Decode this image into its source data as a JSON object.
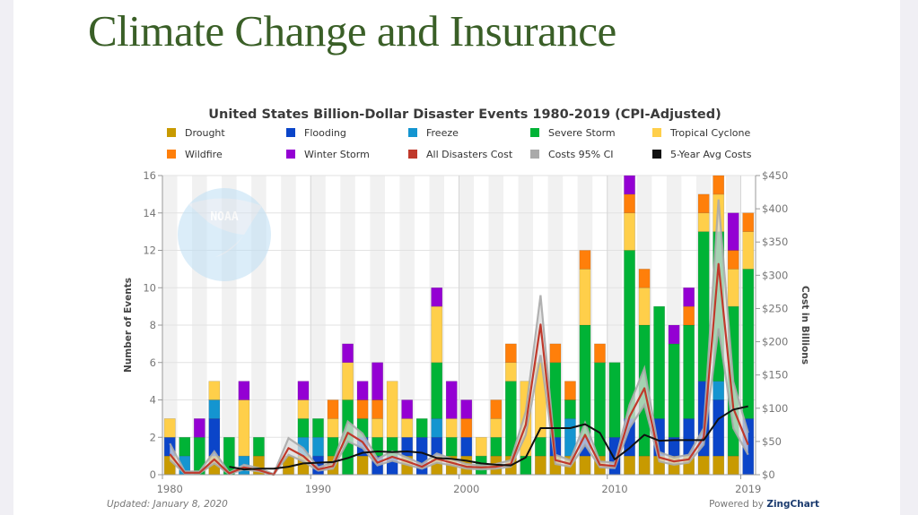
{
  "slide": {
    "title": "Climate Change and Insurance"
  },
  "footer": {
    "updated": "Updated: January 8, 2020",
    "powered_by": "Powered by ",
    "powered_brand": "ZingChart"
  },
  "watermark": {
    "text": "NOAA"
  },
  "chart_data": {
    "type": "bar",
    "stacked": true,
    "title": "United States Billion-Dollar Disaster Events 1980-2019 (CPI-Adjusted)",
    "xlabel": "",
    "ylabel": "Number of Events",
    "y2label": "Cost in Billions",
    "ylim": [
      0,
      16
    ],
    "y2lim": [
      0,
      450
    ],
    "yticks": [
      "0",
      "2",
      "4",
      "6",
      "8",
      "10",
      "12",
      "14",
      "16"
    ],
    "y2ticks": [
      "$0",
      "$50",
      "$100",
      "$150",
      "$200",
      "$250",
      "$300",
      "$350",
      "$400",
      "$450"
    ],
    "xtick_labels": [
      {
        "year": 1980,
        "label": "1980"
      },
      {
        "year": 1990,
        "label": "1990"
      },
      {
        "year": 2000,
        "label": "2000"
      },
      {
        "year": 2010,
        "label": "2010"
      },
      {
        "year": 2019,
        "label": "2019"
      }
    ],
    "grid": true,
    "legend_position": "top",
    "categories": [
      1980,
      1981,
      1982,
      1983,
      1984,
      1985,
      1986,
      1987,
      1988,
      1989,
      1990,
      1991,
      1992,
      1993,
      1994,
      1995,
      1996,
      1997,
      1998,
      1999,
      2000,
      2001,
      2002,
      2003,
      2004,
      2005,
      2006,
      2007,
      2008,
      2009,
      2010,
      2011,
      2012,
      2013,
      2014,
      2015,
      2016,
      2017,
      2018,
      2019
    ],
    "series": [
      {
        "name": "Drought",
        "type": "bar",
        "color": "#c89a00",
        "values": [
          1,
          0,
          0,
          1,
          0,
          0,
          1,
          0,
          1,
          1,
          0,
          1,
          0,
          1,
          0,
          0,
          1,
          0,
          1,
          1,
          1,
          0,
          1,
          1,
          0,
          1,
          1,
          1,
          1,
          1,
          0,
          1,
          1,
          1,
          1,
          1,
          1,
          1,
          1,
          0
        ]
      },
      {
        "name": "Flooding",
        "type": "bar",
        "color": "#0b45c9",
        "values": [
          1,
          0,
          0,
          2,
          0,
          0,
          0,
          0,
          0,
          0,
          1,
          0,
          0,
          1,
          1,
          1,
          1,
          2,
          1,
          0,
          1,
          0,
          0,
          0,
          0,
          0,
          1,
          0,
          1,
          0,
          2,
          2,
          0,
          2,
          1,
          2,
          4,
          3,
          0,
          3
        ]
      },
      {
        "name": "Freeze",
        "type": "bar",
        "color": "#1495d0",
        "values": [
          0,
          1,
          0,
          1,
          0,
          1,
          0,
          0,
          0,
          1,
          1,
          0,
          0,
          0,
          0,
          0,
          0,
          0,
          1,
          0,
          0,
          0,
          0,
          0,
          0,
          0,
          0,
          2,
          0,
          0,
          0,
          0,
          0,
          0,
          0,
          0,
          0,
          1,
          0,
          0
        ]
      },
      {
        "name": "Severe Storm",
        "type": "bar",
        "color": "#00b336",
        "values": [
          0,
          1,
          2,
          0,
          2,
          0,
          1,
          0,
          0,
          1,
          1,
          1,
          4,
          1,
          1,
          1,
          0,
          1,
          3,
          1,
          0,
          1,
          1,
          4,
          1,
          1,
          4,
          1,
          6,
          5,
          4,
          9,
          7,
          6,
          5,
          5,
          8,
          8,
          8,
          8
        ]
      },
      {
        "name": "Tropical Cyclone",
        "type": "bar",
        "color": "#ffcf4a",
        "values": [
          1,
          0,
          0,
          1,
          0,
          3,
          0,
          0,
          0,
          1,
          0,
          1,
          2,
          0,
          1,
          3,
          1,
          0,
          3,
          1,
          0,
          1,
          1,
          1,
          4,
          4,
          0,
          0,
          3,
          0,
          0,
          2,
          2,
          0,
          0,
          0,
          1,
          2,
          2,
          2
        ]
      },
      {
        "name": "Wildfire",
        "type": "bar",
        "color": "#ff7f0a",
        "values": [
          0,
          0,
          0,
          0,
          0,
          0,
          0,
          0,
          0,
          0,
          0,
          1,
          0,
          1,
          1,
          0,
          0,
          0,
          0,
          0,
          1,
          0,
          1,
          1,
          0,
          0,
          1,
          1,
          1,
          1,
          0,
          1,
          1,
          0,
          0,
          1,
          1,
          1,
          1,
          1
        ]
      },
      {
        "name": "Winter Storm",
        "type": "bar",
        "color": "#9400d3",
        "values": [
          0,
          0,
          1,
          0,
          0,
          1,
          0,
          0,
          0,
          1,
          0,
          0,
          1,
          1,
          2,
          0,
          1,
          0,
          1,
          2,
          1,
          0,
          0,
          0,
          0,
          0,
          0,
          0,
          0,
          0,
          0,
          1,
          0,
          0,
          1,
          1,
          0,
          0,
          2,
          0
        ]
      },
      {
        "name": "All Disasters Cost",
        "type": "line",
        "axis": "y2",
        "color": "#c0392b",
        "values": [
          31,
          3,
          3,
          23,
          2,
          11,
          7,
          0,
          40,
          28,
          8,
          13,
          63,
          49,
          18,
          27,
          20,
          12,
          24,
          18,
          12,
          11,
          12,
          16,
          75,
          226,
          22,
          16,
          60,
          15,
          13,
          87,
          130,
          26,
          20,
          23,
          56,
          317,
          100,
          45
        ]
      },
      {
        "name": "Costs 95% CI",
        "type": "band",
        "axis": "y2",
        "color": "#aaaaaa",
        "lower": [
          22,
          2,
          2,
          17,
          1,
          8,
          5,
          0,
          30,
          20,
          6,
          9,
          50,
          40,
          14,
          21,
          15,
          9,
          18,
          14,
          9,
          8,
          9,
          12,
          60,
          180,
          16,
          12,
          45,
          11,
          10,
          70,
          105,
          20,
          15,
          18,
          45,
          220,
          70,
          30
        ],
        "upper": [
          47,
          5,
          5,
          35,
          3,
          15,
          10,
          1,
          55,
          40,
          11,
          18,
          80,
          62,
          24,
          35,
          26,
          16,
          32,
          24,
          16,
          14,
          16,
          22,
          95,
          270,
          30,
          22,
          78,
          20,
          18,
          105,
          160,
          34,
          26,
          30,
          70,
          414,
          140,
          63
        ]
      },
      {
        "name": "5-Year Avg Costs",
        "type": "line",
        "axis": "y2",
        "color": "#111111",
        "values": [
          null,
          null,
          null,
          null,
          12,
          8,
          9,
          9,
          12,
          17,
          18,
          19,
          25,
          33,
          35,
          34,
          35,
          33,
          25,
          24,
          21,
          17,
          15,
          14,
          26,
          70,
          70,
          70,
          76,
          63,
          23,
          40,
          60,
          51,
          52,
          52,
          52,
          84,
          98,
          103
        ]
      }
    ]
  }
}
